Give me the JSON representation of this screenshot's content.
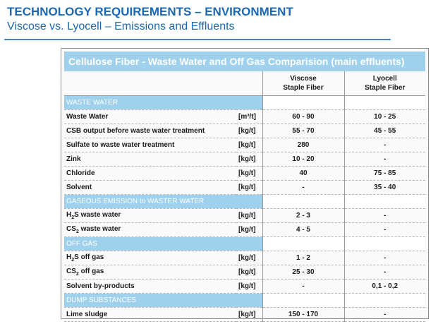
{
  "header": {
    "title": "TECHNOLOGY REQUIREMENTS – ENVIRONMENT",
    "subtitle": "Viscose vs. Lyocell – Emissions and Effluents"
  },
  "table": {
    "banner": "Cellulose Fiber - Waste Water and Off Gas Comparision (main effluents)",
    "col_viscose": [
      "Viscose",
      "Staple Fiber"
    ],
    "col_lyocell": [
      "Lyocell",
      "Staple Fiber"
    ],
    "sections": [
      {
        "title": "WASTE WATER",
        "rows": [
          {
            "param": "Waste Water",
            "unit": "[m³/t]",
            "viscose": "60 - 90",
            "lyocell": "10 - 25"
          },
          {
            "param": "CSB output before waste water treatment",
            "unit": "[kg/t]",
            "viscose": "55 - 70",
            "lyocell": "45 - 55"
          },
          {
            "param": "Sulfate to waste water treatment",
            "unit": "[kg/t]",
            "viscose": "280",
            "lyocell": "-"
          },
          {
            "param": "Zink",
            "unit": "[kg/t]",
            "viscose": "10 - 20",
            "lyocell": "-"
          },
          {
            "param": "Chloride",
            "unit": "[kg/t]",
            "viscose": "40",
            "lyocell": "75 - 85"
          },
          {
            "param": "Solvent",
            "unit": "[kg/t]",
            "viscose": "-",
            "lyocell": "35 - 40"
          }
        ]
      },
      {
        "title": "GASEOUS EMISSION to WASTER WATER",
        "rows": [
          {
            "param_pre": "H",
            "param_sub": "2",
            "param_post": "S waste water",
            "unit": "[kg/t]",
            "viscose": "2 - 3",
            "lyocell": "-"
          },
          {
            "param_pre": "CS",
            "param_sub": "2",
            "param_post": " waste water",
            "unit": "[kg/t]",
            "viscose": "4 - 5",
            "lyocell": "-"
          }
        ]
      },
      {
        "title": "OFF GAS",
        "rows": [
          {
            "param_pre": "H",
            "param_sub": "2",
            "param_post": "S off gas",
            "unit": "[kg/t]",
            "viscose": "1 - 2",
            "lyocell": "-"
          },
          {
            "param_pre": "CS",
            "param_sub": "2",
            "param_post": " off gas",
            "unit": "[kg/t]",
            "viscose": "25 - 30",
            "lyocell": "-"
          },
          {
            "param": "Solvent by-products",
            "unit": "[kg/t]",
            "viscose": "-",
            "lyocell": "0,1 - 0,2"
          }
        ]
      },
      {
        "title": "DUMP SUBSTANCES",
        "rows": [
          {
            "param": "Lime sludge",
            "unit": "[kg/t]",
            "viscose": "150 - 170",
            "lyocell": "-"
          }
        ]
      }
    ]
  }
}
